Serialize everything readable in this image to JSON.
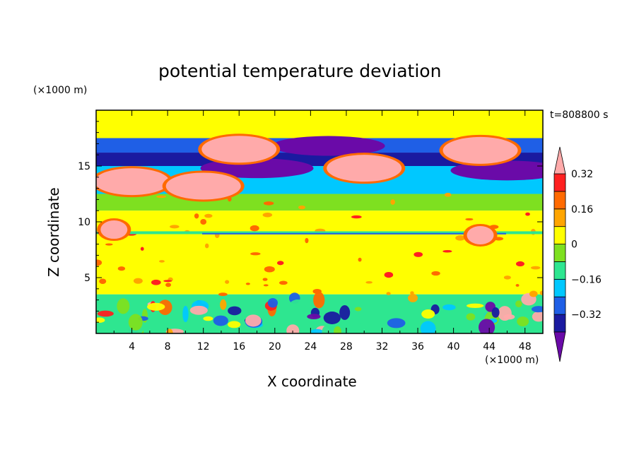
{
  "chart_data": {
    "type": "heatmap",
    "title": "potential temperature deviation",
    "xlabel": "X coordinate",
    "ylabel": "Z coordinate",
    "x_unit": "(×1000 m)",
    "z_unit": "(×1000 m)",
    "time_label": "t=808800 s",
    "xlim": [
      0,
      50
    ],
    "ylim": [
      0,
      20
    ],
    "x_ticks": [
      4,
      8,
      12,
      16,
      20,
      24,
      28,
      32,
      36,
      40,
      44,
      48
    ],
    "y_ticks": [
      5,
      10,
      15
    ],
    "colorbar": {
      "levels": [
        -0.4,
        -0.32,
        -0.24,
        -0.16,
        -0.08,
        0,
        0.08,
        0.16,
        0.24,
        0.32,
        0.4
      ],
      "labels": [
        "0.32",
        "0.16",
        "0",
        "−0.16",
        "−0.32"
      ],
      "label_values": [
        0.32,
        0.16,
        0,
        -0.16,
        -0.32
      ],
      "colors": [
        "#6a0aa8",
        "#1a1aa0",
        "#1f5fe6",
        "#00c8ff",
        "#2ee690",
        "#7ee020",
        "#ffff00",
        "#ffa500",
        "#ff6a00",
        "#ff2020",
        "#ffaaaa"
      ]
    },
    "layers": [
      {
        "z": [
          17.5,
          20
        ],
        "value": 0.08
      },
      {
        "z": [
          16.2,
          17.5
        ],
        "value": -0.24
      },
      {
        "z": [
          15.0,
          16.2
        ],
        "value": -0.32
      },
      {
        "z": [
          12.5,
          15.0
        ],
        "value": -0.16
      },
      {
        "z": [
          11.0,
          12.5
        ],
        "value": 0.0
      },
      {
        "z": [
          9.0,
          11.0
        ],
        "value": 0.08
      },
      {
        "z": [
          3.5,
          9.0
        ],
        "value": 0.08
      },
      {
        "z": [
          0,
          3.5
        ],
        "value": -0.08
      }
    ],
    "warm_anomalies": [
      {
        "x": 4,
        "z": 13.6,
        "value": 0.4
      },
      {
        "x": 12,
        "z": 13.2,
        "value": 0.4
      },
      {
        "x": 16,
        "z": 16.5,
        "value": 0.4
      },
      {
        "x": 30,
        "z": 14.8,
        "value": 0.4
      },
      {
        "x": 43,
        "z": 16.4,
        "value": 0.4
      },
      {
        "x": 43,
        "z": 8.8,
        "value": 0.4
      },
      {
        "x": 2,
        "z": 9.3,
        "value": 0.4
      }
    ],
    "cold_anomalies": [
      {
        "x": 26,
        "z": 16.8,
        "value": -0.4
      },
      {
        "x": 18,
        "z": 14.8,
        "value": -0.4
      },
      {
        "x": 46,
        "z": 14.6,
        "value": -0.4
      }
    ]
  }
}
